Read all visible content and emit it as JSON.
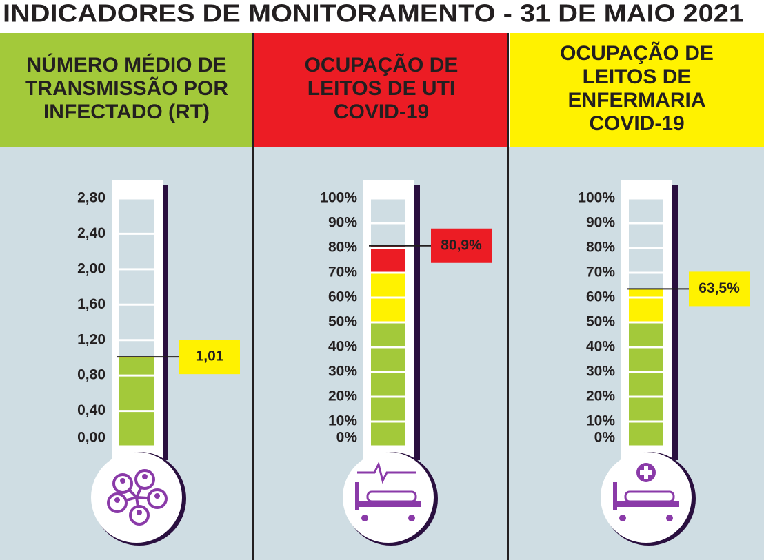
{
  "title": "INDICADORES DE MONITORAMENTO - 31 DE MAIO 2021",
  "chart_data": [
    {
      "type": "thermometer",
      "title": [
        "NÚMERO MÉDIO DE",
        "TRANSMISSÃO POR",
        "INFECTADO (RT)"
      ],
      "color": "#a3c93a",
      "value": 1.01,
      "value_label": "1,01",
      "label_color": "#fff200",
      "ylim": [
        0,
        2.8
      ],
      "yticks": [
        {
          "value": 0,
          "label": "0,00"
        },
        {
          "value": 0.4,
          "label": "0,40"
        },
        {
          "value": 0.8,
          "label": "0,80"
        },
        {
          "value": 1.2,
          "label": "1,20"
        },
        {
          "value": 1.6,
          "label": "1,60"
        },
        {
          "value": 2,
          "label": "2,00"
        },
        {
          "value": 2.4,
          "label": "2,40"
        },
        {
          "value": 2.8,
          "label": "2,80"
        }
      ],
      "zones": [
        {
          "max": 1,
          "color": "#a3c93a"
        },
        {
          "max": 2.8,
          "color": "#fff200"
        }
      ]
    },
    {
      "type": "thermometer",
      "title": [
        "OCUPAÇÃO DE",
        "LEITOS DE UTI",
        "COVID-19"
      ],
      "color": "#ec1c24",
      "value": 80.9,
      "value_label": "80,9%",
      "label_color": "#ec1c24",
      "ylim": [
        0,
        100
      ],
      "yticks": [
        {
          "value": 0,
          "label": "0%"
        },
        {
          "value": 10,
          "label": "10%"
        },
        {
          "value": 20,
          "label": "20%"
        },
        {
          "value": 30,
          "label": "30%"
        },
        {
          "value": 40,
          "label": "40%"
        },
        {
          "value": 50,
          "label": "50%"
        },
        {
          "value": 60,
          "label": "60%"
        },
        {
          "value": 70,
          "label": "70%"
        },
        {
          "value": 80,
          "label": "80%"
        },
        {
          "value": 90,
          "label": "90%"
        },
        {
          "value": 100,
          "label": "100%"
        }
      ],
      "zones": [
        {
          "max": 50,
          "color": "#a3c93a"
        },
        {
          "max": 70,
          "color": "#fff200"
        },
        {
          "max": 100,
          "color": "#ec1c24"
        }
      ]
    },
    {
      "type": "thermometer",
      "title": [
        "OCUPAÇÃO DE",
        "LEITOS DE",
        "ENFERMARIA",
        "COVID-19"
      ],
      "color": "#fff200",
      "value": 63.5,
      "value_label": "63,5%",
      "label_color": "#fff200",
      "ylim": [
        0,
        100
      ],
      "yticks": [
        {
          "value": 0,
          "label": "0%"
        },
        {
          "value": 10,
          "label": "10%"
        },
        {
          "value": 20,
          "label": "20%"
        },
        {
          "value": 30,
          "label": "30%"
        },
        {
          "value": 40,
          "label": "40%"
        },
        {
          "value": 50,
          "label": "50%"
        },
        {
          "value": 60,
          "label": "60%"
        },
        {
          "value": 70,
          "label": "70%"
        },
        {
          "value": 80,
          "label": "80%"
        },
        {
          "value": 90,
          "label": "90%"
        },
        {
          "value": 100,
          "label": "100%"
        }
      ],
      "zones": [
        {
          "max": 50,
          "color": "#a3c93a"
        },
        {
          "max": 70,
          "color": "#fff200"
        },
        {
          "max": 100,
          "color": "#ec1c24"
        }
      ]
    }
  ]
}
